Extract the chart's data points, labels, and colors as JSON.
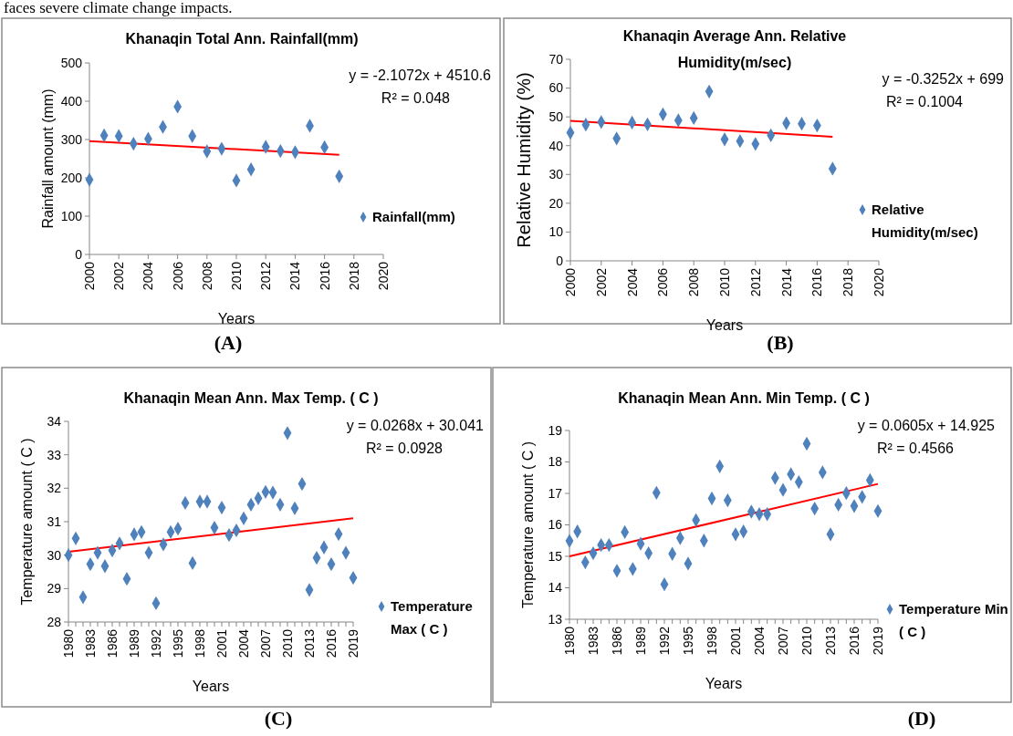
{
  "chart_data": [
    {
      "type": "scatter",
      "title": "Khanaqin Total Ann. Rainfall(mm)",
      "xlabel": "Years",
      "ylabel": "Rainfall amount (mm)",
      "x": [
        2000,
        2001,
        2002,
        2003,
        2004,
        2005,
        2006,
        2007,
        2008,
        2009,
        2010,
        2011,
        2012,
        2013,
        2014,
        2015,
        2016,
        2017
      ],
      "series": [
        {
          "name": "Rainfall(mm)",
          "color": "#4f81bd",
          "values": [
            195,
            311,
            309,
            289,
            302,
            333,
            386,
            309,
            269,
            276,
            193,
            222,
            281,
            270,
            267,
            336,
            280,
            204
          ]
        },
        {
          "type": "line",
          "color": "#ff0000",
          "marker": "none",
          "values": [
            296,
            null,
            null,
            null,
            null,
            null,
            null,
            null,
            null,
            null,
            null,
            null,
            null,
            null,
            null,
            null,
            null,
            260
          ]
        }
      ],
      "xlim": [
        2000,
        2020
      ],
      "xticks": [
        2000,
        2002,
        2004,
        2006,
        2008,
        2010,
        2012,
        2014,
        2016,
        2018,
        2020
      ],
      "ylim": [
        0,
        500
      ],
      "yticks": [
        0,
        100,
        200,
        300,
        400,
        500
      ],
      "legend": "right",
      "marker": "diamond",
      "annotations": [
        "y = -2.1072x + 4510.6",
        "R² = 0.048",
        "(A)",
        "faces severe climate change impacts."
      ]
    },
    {
      "type": "scatter",
      "title": "Khanaqin Average Ann. Relative Humidity(m/sec)",
      "xlabel": "Years",
      "ylabel": "Relative Humidity (%)",
      "x": [
        2000,
        2001,
        2002,
        2003,
        2004,
        2005,
        2006,
        2007,
        2008,
        2009,
        2010,
        2011,
        2012,
        2013,
        2014,
        2015,
        2016,
        2017
      ],
      "series": [
        {
          "name": "Relative Humidity(m/sec)",
          "color": "#4f81bd",
          "values": [
            44.5,
            47.3,
            48.2,
            42.5,
            48,
            47.4,
            50.9,
            48.8,
            49.6,
            58.8,
            42.2,
            41.6,
            40.6,
            43.6,
            47.8,
            47.6,
            47,
            32
          ]
        },
        {
          "type": "line",
          "color": "#ff0000",
          "marker": "none",
          "values": [
            48.6,
            null,
            null,
            null,
            null,
            null,
            null,
            null,
            null,
            null,
            null,
            null,
            null,
            null,
            null,
            null,
            null,
            43.1
          ]
        }
      ],
      "xlim": [
        2000,
        2020
      ],
      "xticks": [
        2000,
        2002,
        2004,
        2006,
        2008,
        2010,
        2012,
        2014,
        2016,
        2018,
        2020
      ],
      "ylim": [
        0,
        70
      ],
      "yticks": [
        0,
        10,
        20,
        30,
        40,
        50,
        60,
        70
      ],
      "legend": "right",
      "marker": "diamond",
      "annotations": [
        "y = -0.3252x + 699",
        "R² = 0.1004",
        "(B)"
      ]
    },
    {
      "type": "scatter",
      "title": "Khanaqin Mean Ann. Max Temp. ( C )",
      "xlabel": "Years",
      "ylabel": "Temperature amount ( C )",
      "categories": [
        "1980",
        null,
        null,
        "1983",
        null,
        null,
        "1986",
        null,
        null,
        "1989",
        null,
        null,
        "1992",
        null,
        null,
        "1995",
        null,
        null,
        "1998",
        null,
        null,
        "2001",
        null,
        null,
        "2004",
        null,
        null,
        "2007",
        null,
        null,
        "2010",
        null,
        null,
        "2013",
        null,
        null,
        "2016",
        null,
        null,
        "2019"
      ],
      "series": [
        {
          "name": "Temperature Max ( C )",
          "color": "#4f81bd",
          "values": [
            30.0,
            30.5,
            28.74,
            29.73,
            30.07,
            29.67,
            30.14,
            30.35,
            29.29,
            30.62,
            30.69,
            30.07,
            28.56,
            30.32,
            30.69,
            30.79,
            31.56,
            29.76,
            31.6,
            31.6,
            30.82,
            31.42,
            30.6,
            30.74,
            31.1,
            31.51,
            31.7,
            31.89,
            31.87,
            31.51,
            33.65,
            31.4,
            32.13,
            28.96,
            29.92,
            30.23,
            29.73,
            30.63,
            30.07,
            29.32
          ]
        },
        {
          "type": "line",
          "color": "#ff0000",
          "marker": "none",
          "values": [
            30.1,
            null,
            null,
            null,
            null,
            null,
            null,
            null,
            null,
            null,
            null,
            null,
            null,
            null,
            null,
            null,
            null,
            null,
            null,
            null,
            null,
            null,
            null,
            null,
            null,
            null,
            null,
            null,
            null,
            null,
            null,
            null,
            null,
            null,
            null,
            null,
            null,
            null,
            null,
            31.1
          ]
        }
      ],
      "ylim": [
        28,
        34
      ],
      "yticks": [
        28,
        29,
        30,
        31,
        32,
        33,
        34
      ],
      "legend": "right",
      "marker": "diamond",
      "annotations": [
        "y = 0.0268x + 30.041",
        "R² = 0.0928",
        "(C)"
      ]
    },
    {
      "type": "scatter",
      "title": "Khanaqin Mean Ann. Min Temp. ( C )",
      "xlabel": "Years",
      "ylabel": "Temperature amount ( C )",
      "categories": [
        "1980",
        null,
        null,
        "1983",
        null,
        null,
        "1986",
        null,
        null,
        "1989",
        null,
        null,
        "1992",
        null,
        null,
        "1995",
        null,
        null,
        "1998",
        null,
        null,
        "2001",
        null,
        null,
        "2004",
        null,
        null,
        "2007",
        null,
        null,
        "2010",
        null,
        null,
        "2013",
        null,
        null,
        "2016",
        null,
        null,
        "2019"
      ],
      "series": [
        {
          "name": "Temperature Min ( C )",
          "color": "#4f81bd",
          "values": [
            15.49,
            15.79,
            14.81,
            15.1,
            15.36,
            15.36,
            14.54,
            15.77,
            14.6,
            15.4,
            15.1,
            17.02,
            14.11,
            15.08,
            15.58,
            14.77,
            16.15,
            15.5,
            16.84,
            17.86,
            16.78,
            15.7,
            15.79,
            16.42,
            16.34,
            16.34,
            17.49,
            17.11,
            17.61,
            17.36,
            18.58,
            16.52,
            17.67,
            15.7,
            16.64,
            17.01,
            16.6,
            16.89,
            17.42,
            16.44
          ]
        },
        {
          "type": "line",
          "color": "#ff0000",
          "marker": "none",
          "values": [
            15.0,
            null,
            null,
            null,
            null,
            null,
            null,
            null,
            null,
            null,
            null,
            null,
            null,
            null,
            null,
            null,
            null,
            null,
            null,
            null,
            null,
            null,
            null,
            null,
            null,
            null,
            null,
            null,
            null,
            null,
            null,
            null,
            null,
            null,
            null,
            null,
            null,
            null,
            null,
            17.3
          ]
        }
      ],
      "ylim": [
        13,
        19
      ],
      "yticks": [
        13,
        14,
        15,
        16,
        17,
        18,
        19
      ],
      "legend": "right",
      "marker": "diamond",
      "annotations": [
        "y = 0.0605x + 14.925",
        "R² = 0.4566",
        "(D)"
      ]
    }
  ]
}
